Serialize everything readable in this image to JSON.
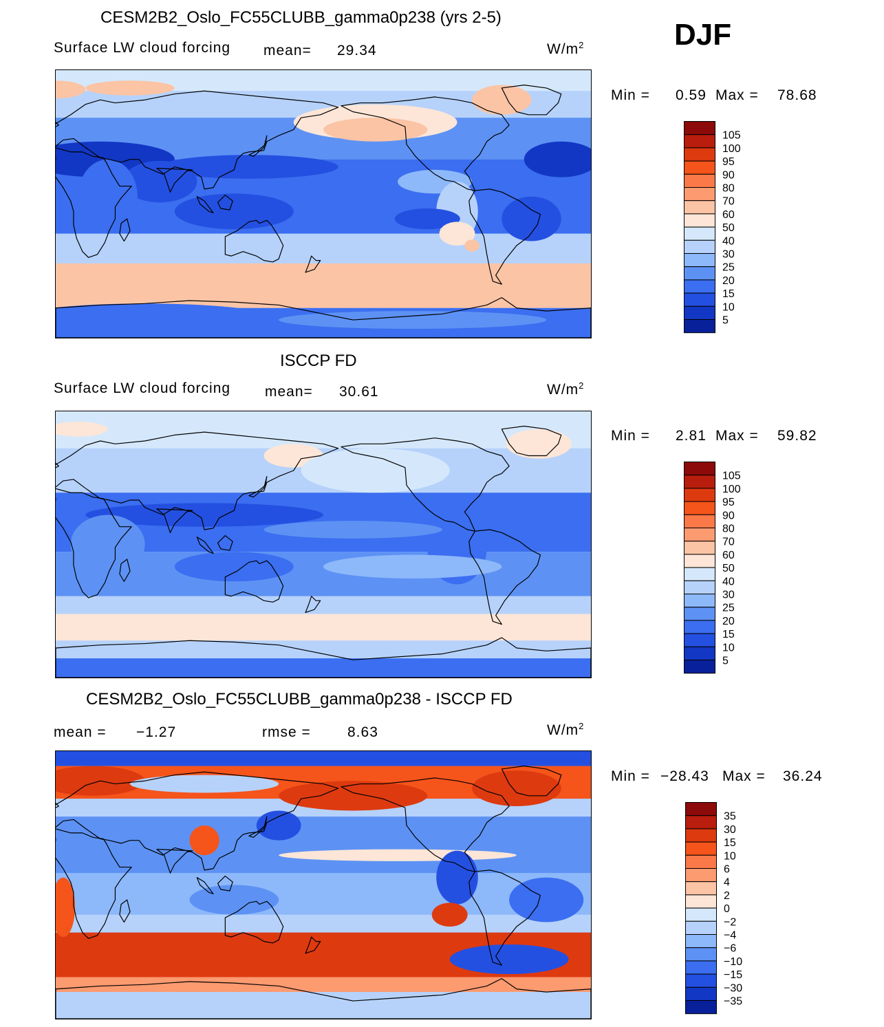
{
  "season": "DJF",
  "units_main": "W/m",
  "units_sup": "2",
  "panels": [
    {
      "title": "CESM2B2_Oslo_FC55CLUBB_gamma0p238 (yrs 2-5)",
      "variable": "Surface LW cloud forcing",
      "stat1_label": "mean=",
      "stat1_value": "29.34",
      "min_label": "Min =",
      "min_value": "0.59",
      "max_label": "Max =",
      "max_value": "78.68"
    },
    {
      "title": "ISCCP FD",
      "variable": "Surface LW cloud forcing",
      "stat1_label": "mean=",
      "stat1_value": "30.61",
      "min_label": "Min =",
      "min_value": "2.81",
      "max_label": "Max =",
      "max_value": "59.82"
    },
    {
      "title": "CESM2B2_Oslo_FC55CLUBB_gamma0p238 - ISCCP FD",
      "stat1_label": "mean =",
      "stat1_value": "−1.27",
      "stat2_label": "rmse =",
      "stat2_value": "8.63",
      "min_label": "Min =",
      "min_value": "−28.43",
      "max_label": "Max =",
      "max_value": "36.24"
    }
  ],
  "chart_data": [
    {
      "type": "heatmap",
      "title": "CESM2B2_Oslo_FC55CLUBB_gamma0p238 (yrs 2-5)",
      "variable": "Surface LW cloud forcing",
      "units": "W/m2",
      "mean": 29.34,
      "min": 0.59,
      "max": 78.68,
      "colorbar_levels": [
        "105",
        "100",
        "95",
        "90",
        "80",
        "70",
        "60",
        "50",
        "40",
        "30",
        "25",
        "20",
        "15",
        "10",
        "5"
      ],
      "colors": [
        "#8c0a0a",
        "#b81d0d",
        "#de3a10",
        "#f5541b",
        "#fb7948",
        "#fc9a70",
        "#fbc4a5",
        "#fde6d7",
        "#d5e8fb",
        "#b6d2fb",
        "#8db8fa",
        "#5d92f4",
        "#3b6ef0",
        "#2450e1",
        "#1237c5",
        "#09209b"
      ]
    },
    {
      "type": "heatmap",
      "title": "ISCCP FD",
      "variable": "Surface LW cloud forcing",
      "units": "W/m2",
      "mean": 30.61,
      "min": 2.81,
      "max": 59.82,
      "colorbar_levels": [
        "105",
        "100",
        "95",
        "90",
        "80",
        "70",
        "60",
        "50",
        "40",
        "30",
        "25",
        "20",
        "15",
        "10",
        "5"
      ],
      "colors": [
        "#8c0a0a",
        "#b81d0d",
        "#de3a10",
        "#f5541b",
        "#fb7948",
        "#fc9a70",
        "#fbc4a5",
        "#fde6d7",
        "#d5e8fb",
        "#b6d2fb",
        "#8db8fa",
        "#5d92f4",
        "#3b6ef0",
        "#2450e1",
        "#1237c5",
        "#09209b"
      ]
    },
    {
      "type": "heatmap",
      "title": "CESM2B2_Oslo_FC55CLUBB_gamma0p238 - ISCCP FD",
      "units": "W/m2",
      "mean": -1.27,
      "rmse": 8.63,
      "min": -28.43,
      "max": 36.24,
      "colorbar_levels": [
        "35",
        "30",
        "15",
        "10",
        "6",
        "4",
        "2",
        "0",
        "−2",
        "−4",
        "−6",
        "−10",
        "−15",
        "−30",
        "−35"
      ],
      "colors": [
        "#8c0a0a",
        "#b81d0d",
        "#de3a10",
        "#f5541b",
        "#fb7948",
        "#fc9a70",
        "#fbc4a5",
        "#fde6d7",
        "#d5e8fb",
        "#b6d2fb",
        "#8db8fa",
        "#5d92f4",
        "#3b6ef0",
        "#2450e1",
        "#1237c5",
        "#09209b"
      ]
    }
  ]
}
